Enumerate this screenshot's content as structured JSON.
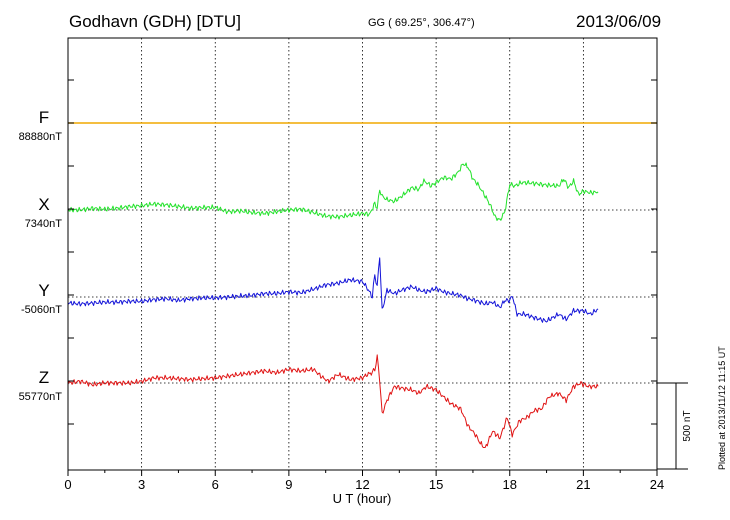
{
  "header": {
    "station": "Godhavn (GDH)  [DTU]",
    "coords": "GG ( 69.25°, 306.47°)",
    "date": "2013/06/09"
  },
  "footer": {
    "plotted": "Plotted at 2013/11/12 11:15 UT"
  },
  "chart_data": {
    "type": "line",
    "xlabel": "U T (hour)",
    "xlim": [
      0,
      24
    ],
    "xticks": [
      0,
      3,
      6,
      9,
      12,
      15,
      18,
      21,
      24
    ],
    "grid": true,
    "scale_bar": {
      "label": "500 nT",
      "value_nT": 500
    },
    "colors": {
      "F": "#f0a800",
      "X": "#22e22a",
      "Y": "#1414d8",
      "Z": "#e01414"
    },
    "series": [
      {
        "name": "F",
        "baseline_label": "88880nT",
        "x": [
          0,
          24
        ],
        "y": [
          0,
          0
        ]
      },
      {
        "name": "X",
        "baseline_label": "7340nT",
        "x": [
          0,
          0.5,
          1,
          1.5,
          2,
          2.5,
          3,
          3.5,
          4,
          4.5,
          5,
          5.5,
          6,
          6.5,
          7,
          7.5,
          8,
          8.5,
          9,
          9.5,
          10,
          10.5,
          11,
          11.5,
          12,
          12.3,
          12.5,
          12.6,
          12.7,
          12.8,
          13,
          13.3,
          13.6,
          14,
          14.3,
          14.5,
          14.8,
          15,
          15.3,
          15.6,
          15.9,
          16.1,
          16.3,
          16.5,
          16.7,
          17,
          17.2,
          17.4,
          17.6,
          17.8,
          18,
          18.2,
          18.5,
          19,
          19.5,
          20,
          20.2,
          20.4,
          20.6,
          20.8,
          21,
          21.3,
          21.6
        ],
        "y": [
          0,
          0,
          10,
          5,
          10,
          20,
          25,
          35,
          30,
          20,
          10,
          15,
          15,
          -10,
          -5,
          -15,
          -20,
          -10,
          0,
          5,
          -15,
          -35,
          -40,
          -30,
          -20,
          -25,
          40,
          10,
          120,
          80,
          60,
          50,
          80,
          130,
          120,
          170,
          140,
          160,
          190,
          180,
          220,
          270,
          250,
          180,
          150,
          80,
          30,
          -40,
          -60,
          -10,
          150,
          140,
          160,
          155,
          145,
          140,
          180,
          130,
          170,
          90,
          110,
          100,
          105
        ]
      },
      {
        "name": "Y",
        "baseline_label": "-5060nT",
        "x": [
          0,
          0.5,
          1,
          1.5,
          2,
          2.5,
          3,
          3.5,
          4,
          4.5,
          5,
          5.5,
          6,
          6.5,
          7,
          7.5,
          8,
          8.5,
          9,
          9.5,
          10,
          10.5,
          11,
          11.5,
          12,
          12.2,
          12.4,
          12.5,
          12.6,
          12.7,
          12.8,
          13,
          13.3,
          13.6,
          14,
          14.3,
          14.6,
          15,
          15.3,
          15.6,
          16,
          16.3,
          16.6,
          17,
          17.3,
          17.6,
          17.8,
          18,
          18.1,
          18.3,
          18.6,
          19,
          19.5,
          20,
          20.3,
          20.6,
          21,
          21.3,
          21.6
        ],
        "y": [
          -35,
          -40,
          -35,
          -30,
          -30,
          -25,
          -25,
          -15,
          -10,
          -20,
          -10,
          -5,
          -5,
          0,
          5,
          10,
          20,
          20,
          30,
          25,
          45,
          70,
          80,
          100,
          90,
          50,
          0,
          130,
          60,
          240,
          -80,
          40,
          20,
          40,
          60,
          40,
          30,
          50,
          30,
          20,
          10,
          -10,
          -20,
          -40,
          -30,
          -60,
          -20,
          -20,
          10,
          -100,
          -100,
          -120,
          -140,
          -100,
          -130,
          -80,
          -80,
          -100,
          -70
        ]
      },
      {
        "name": "Z",
        "baseline_label": "55770nT",
        "x": [
          0,
          0.5,
          1,
          1.5,
          2,
          2.5,
          3,
          3.5,
          4,
          4.5,
          5,
          5.5,
          6,
          6.5,
          7,
          7.5,
          8,
          8.5,
          9,
          9.5,
          10,
          10.3,
          10.6,
          11,
          11.5,
          12,
          12.2,
          12.4,
          12.5,
          12.6,
          12.7,
          12.8,
          13,
          13.3,
          13.6,
          14,
          14.3,
          14.6,
          15,
          15.3,
          15.6,
          16,
          16.3,
          16.6,
          16.8,
          17,
          17.3,
          17.6,
          17.9,
          18.1,
          18.4,
          18.7,
          19,
          19.3,
          19.6,
          20,
          20.3,
          20.6,
          20.9,
          21.2,
          21.6
        ],
        "y": [
          0,
          10,
          -10,
          0,
          0,
          0,
          10,
          30,
          30,
          25,
          20,
          25,
          30,
          40,
          50,
          60,
          70,
          60,
          80,
          70,
          80,
          40,
          10,
          50,
          20,
          30,
          50,
          60,
          80,
          150,
          20,
          -180,
          -100,
          -20,
          -30,
          -40,
          -60,
          -20,
          -40,
          -80,
          -120,
          -150,
          -250,
          -300,
          -350,
          -380,
          -280,
          -320,
          -200,
          -300,
          -220,
          -200,
          -160,
          -150,
          -80,
          -60,
          -100,
          -20,
          0,
          -20,
          -20
        ]
      }
    ]
  }
}
